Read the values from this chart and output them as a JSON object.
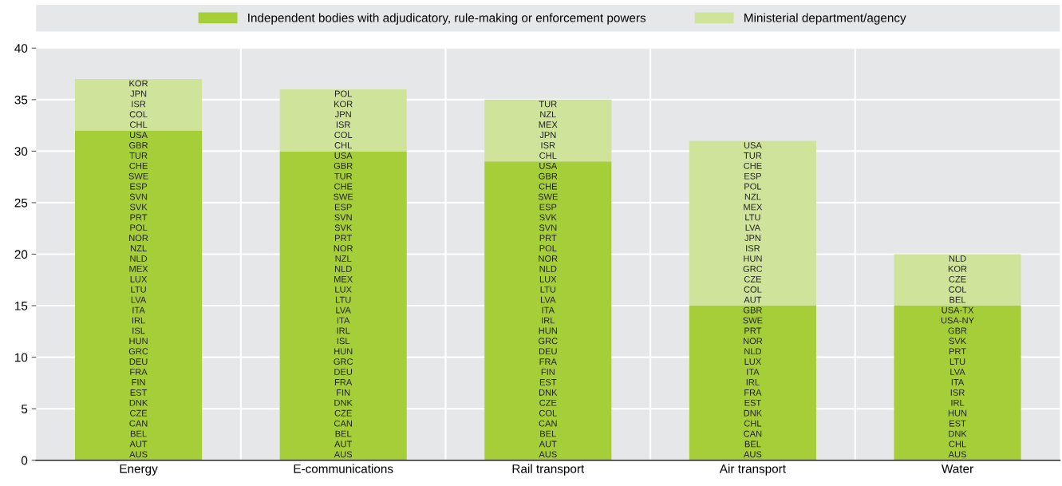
{
  "chart_data": {
    "type": "bar",
    "stacked": true,
    "categories": [
      "Energy",
      "E-communications",
      "Rail transport",
      "Air transport",
      "Water"
    ],
    "series": [
      {
        "name": "Independent bodies with adjudicatory, rule-making or enforcement powers",
        "color": "#a6ce39",
        "values": [
          32,
          30,
          29,
          15,
          15
        ]
      },
      {
        "name": "Ministerial department/agency",
        "color": "#d0e39a",
        "values": [
          5,
          6,
          6,
          16,
          5
        ]
      }
    ],
    "ylim": [
      0,
      40
    ],
    "yticks": [
      0,
      5,
      10,
      15,
      20,
      25,
      30,
      35,
      40
    ],
    "grid": true,
    "legend": "top",
    "annotations": [
      "AUS",
      "AUT",
      "BEL",
      "CAN",
      "CZE",
      "DNK",
      "EST",
      "FIN",
      "FRA",
      "DEU",
      "GRC",
      "HUN",
      "ISL",
      "IRL",
      "ITA",
      "LVA",
      "LTU",
      "LUX",
      "MEX",
      "NLD",
      "NZL",
      "NOR",
      "POL",
      "PRT",
      "SVK",
      "SVN",
      "ESP",
      "SWE",
      "CHE",
      "TUR",
      "GBR",
      "USA",
      "CHL",
      "COL",
      "ISR",
      "JPN",
      "KOR",
      "AUS",
      "AUT",
      "BEL",
      "CAN",
      "CZE",
      "DNK",
      "FIN",
      "FRA",
      "DEU",
      "GRC",
      "HUN",
      "ISL",
      "IRL",
      "ITA",
      "LVA",
      "LTU",
      "LUX",
      "MEX",
      "NLD",
      "NZL",
      "NOR",
      "PRT",
      "SVK",
      "SVN",
      "ESP",
      "SWE",
      "CHE",
      "TUR",
      "GBR",
      "USA",
      "CHL",
      "COL",
      "ISR",
      "JPN",
      "KOR",
      "POL",
      "AUS",
      "AUT",
      "BEL",
      "CAN",
      "COL",
      "CZE",
      "DNK",
      "EST",
      "FIN",
      "FRA",
      "DEU",
      "GRC",
      "HUN",
      "IRL",
      "ITA",
      "LVA",
      "LTU",
      "LUX",
      "NLD",
      "NOR",
      "POL",
      "PRT",
      "SVN",
      "SVK",
      "ESP",
      "SWE",
      "CHE",
      "GBR",
      "USA",
      "CHL",
      "ISR",
      "JPN",
      "MEX",
      "NZL",
      "TUR",
      "AUS",
      "BEL",
      "CAN",
      "CHL",
      "DNK",
      "EST",
      "FRA",
      "IRL",
      "ITA",
      "LUX",
      "NLD",
      "NOR",
      "PRT",
      "SWE",
      "GBR",
      "AUT",
      "COL",
      "CZE",
      "GRC",
      "HUN",
      "ISR",
      "JPN",
      "LVA",
      "LTU",
      "MEX",
      "NZL",
      "POL",
      "ESP",
      "CHE",
      "TUR",
      "USA",
      "AUS",
      "CHL",
      "DNK",
      "EST",
      "HUN",
      "IRL",
      "ISR",
      "ITA",
      "LVA",
      "LTU",
      "PRT",
      "SVK",
      "GBR",
      "USA-NY",
      "USA-TX",
      "BEL",
      "COL",
      "CZE",
      "KOR",
      "NLD"
    ]
  }
}
